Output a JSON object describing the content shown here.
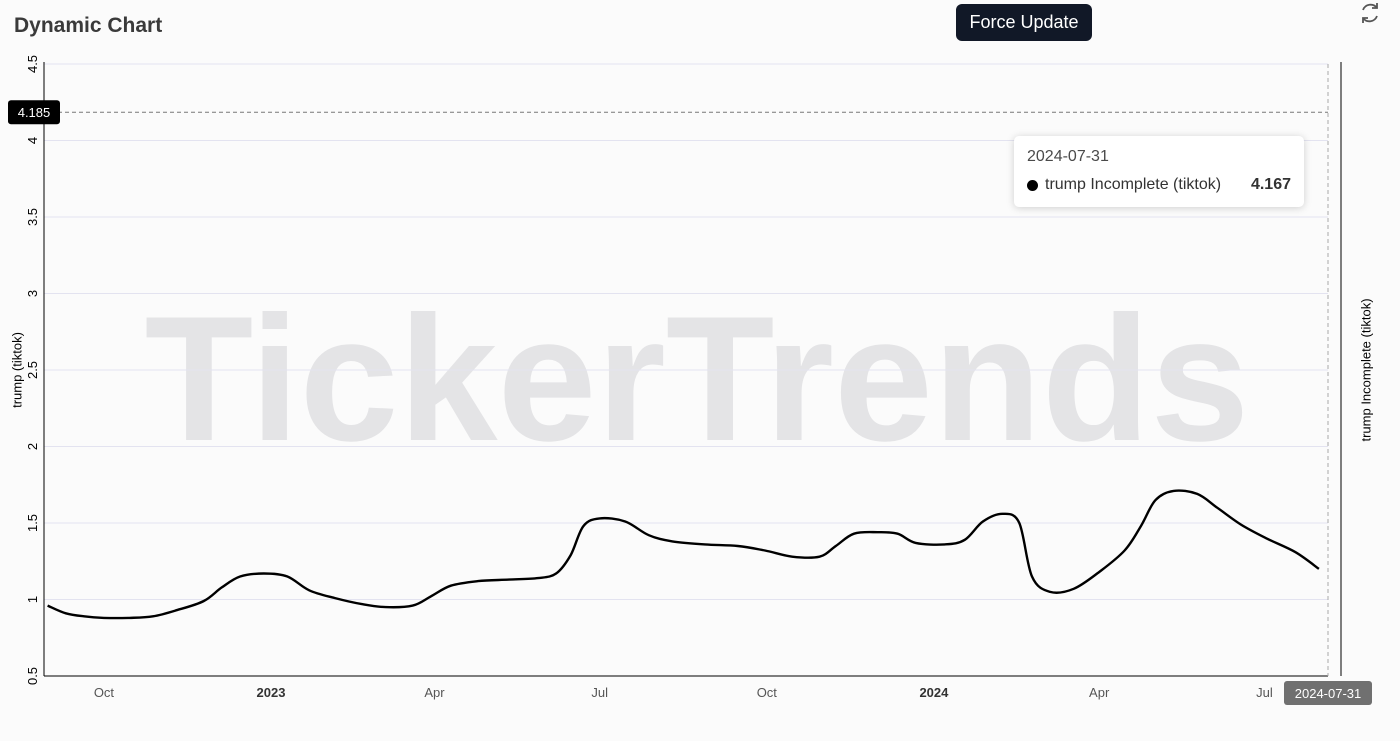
{
  "header": {
    "title": "Dynamic Chart",
    "force_update_label": "Force Update"
  },
  "watermark": "TickerTrends",
  "colors": {
    "line": "#000000",
    "grid": "#e3e3f0",
    "button_bg": "#111827",
    "crosshair_label_bg": "#000000",
    "date_badge_bg": "#707070"
  },
  "tooltip": {
    "date": "2024-07-31",
    "series_name": "trump Incomplete (tiktok)",
    "value": "4.167"
  },
  "crosshair": {
    "y_value": 4.185,
    "y_label": "4.185",
    "x_label": "2024-07-31"
  },
  "chart_data": {
    "type": "line",
    "ylabel": "trump  (tiktok)",
    "ylabel_right": "trump Incomplete  (tiktok)",
    "ylim": [
      0.5,
      4.5
    ],
    "yticks": [
      "0.5",
      "1",
      "1.5",
      "2",
      "2.5",
      "3",
      "3.5",
      "4",
      "4.5"
    ],
    "xlim": [
      "2022-08-29",
      "2024-08-05"
    ],
    "xticks": [
      {
        "label": "Oct",
        "date": "2022-10-01",
        "bold": false
      },
      {
        "label": "2023",
        "date": "2023-01-01",
        "bold": true
      },
      {
        "label": "Apr",
        "date": "2023-04-01",
        "bold": false
      },
      {
        "label": "Jul",
        "date": "2023-07-01",
        "bold": false
      },
      {
        "label": "Oct",
        "date": "2023-10-01",
        "bold": false
      },
      {
        "label": "2024",
        "date": "2024-01-01",
        "bold": true
      },
      {
        "label": "Apr",
        "date": "2024-04-01",
        "bold": false
      },
      {
        "label": "Jul",
        "date": "2024-07-01",
        "bold": false
      }
    ],
    "grid": true,
    "series": [
      {
        "name": "trump  (tiktok)",
        "style": "solid",
        "points": [
          [
            "2022-08-31",
            0.96
          ],
          [
            "2022-09-10",
            0.91
          ],
          [
            "2022-09-20",
            0.89
          ],
          [
            "2022-10-01",
            0.88
          ],
          [
            "2022-10-15",
            0.88
          ],
          [
            "2022-10-28",
            0.89
          ],
          [
            "2022-11-10",
            0.93
          ],
          [
            "2022-11-25",
            0.99
          ],
          [
            "2022-12-05",
            1.08
          ],
          [
            "2022-12-15",
            1.15
          ],
          [
            "2022-12-28",
            1.17
          ],
          [
            "2023-01-10",
            1.15
          ],
          [
            "2023-01-22",
            1.06
          ],
          [
            "2023-02-05",
            1.01
          ],
          [
            "2023-02-20",
            0.97
          ],
          [
            "2023-03-05",
            0.95
          ],
          [
            "2023-03-20",
            0.96
          ],
          [
            "2023-03-30",
            1.02
          ],
          [
            "2023-04-10",
            1.09
          ],
          [
            "2023-04-25",
            1.12
          ],
          [
            "2023-05-12",
            1.13
          ],
          [
            "2023-05-28",
            1.14
          ],
          [
            "2023-06-07",
            1.17
          ],
          [
            "2023-06-15",
            1.29
          ],
          [
            "2023-06-22",
            1.48
          ],
          [
            "2023-07-01",
            1.53
          ],
          [
            "2023-07-15",
            1.51
          ],
          [
            "2023-07-28",
            1.42
          ],
          [
            "2023-08-10",
            1.38
          ],
          [
            "2023-08-28",
            1.36
          ],
          [
            "2023-09-15",
            1.35
          ],
          [
            "2023-09-30",
            1.32
          ],
          [
            "2023-10-15",
            1.28
          ],
          [
            "2023-10-30",
            1.28
          ],
          [
            "2023-11-08",
            1.35
          ],
          [
            "2023-11-18",
            1.43
          ],
          [
            "2023-12-01",
            1.44
          ],
          [
            "2023-12-12",
            1.43
          ],
          [
            "2023-12-22",
            1.37
          ],
          [
            "2024-01-07",
            1.36
          ],
          [
            "2024-01-18",
            1.39
          ],
          [
            "2024-01-28",
            1.51
          ],
          [
            "2024-02-08",
            1.56
          ],
          [
            "2024-02-17",
            1.5
          ],
          [
            "2024-02-24",
            1.15
          ],
          [
            "2024-03-05",
            1.05
          ],
          [
            "2024-03-18",
            1.07
          ],
          [
            "2024-04-01",
            1.18
          ],
          [
            "2024-04-15",
            1.32
          ],
          [
            "2024-04-24",
            1.48
          ],
          [
            "2024-05-02",
            1.65
          ],
          [
            "2024-05-12",
            1.71
          ],
          [
            "2024-05-25",
            1.69
          ],
          [
            "2024-06-05",
            1.6
          ],
          [
            "2024-06-18",
            1.49
          ],
          [
            "2024-07-02",
            1.4
          ],
          [
            "2024-07-18",
            1.31
          ],
          [
            "2024-07-31",
            1.2
          ]
        ]
      }
    ]
  }
}
